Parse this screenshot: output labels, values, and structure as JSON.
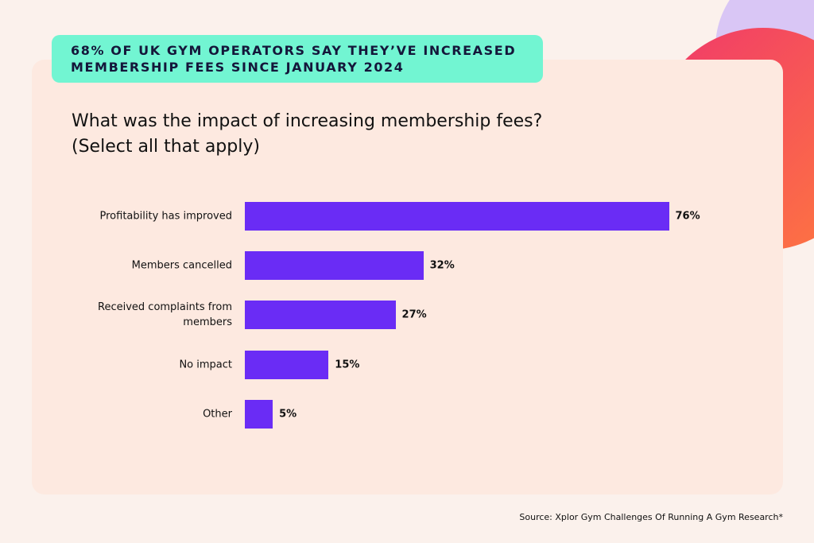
{
  "chart_data": {
    "type": "bar",
    "orientation": "horizontal",
    "banner": "68% OF UK GYM OPERATORS SAY THEY’VE INCREASED MEMBERSHIP FEES SINCE JANUARY 2024",
    "title": "What was the impact of increasing membership fees?",
    "subtitle": "(Select all that apply)",
    "categories": [
      "Profitability has improved",
      "Members cancelled",
      "Received complaints from members",
      "No impact",
      "Other"
    ],
    "values": [
      76,
      32,
      27,
      15,
      5
    ],
    "value_labels": [
      "76%",
      "32%",
      "27%",
      "15%",
      "5%"
    ],
    "color": "#6a2cf5",
    "source": "Source: Xplor Gym Challenges Of Running A Gym Research*"
  }
}
